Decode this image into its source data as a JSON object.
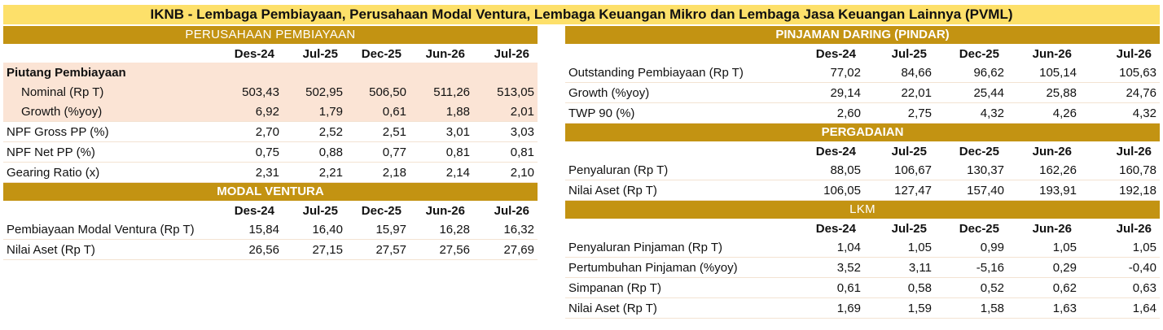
{
  "title": "IKNB - Lembaga Pembiayaan, Perusahaan Modal Ventura, Lembaga Keuangan Mikro dan Lembaga Jasa Keuangan Lainnya (PVML)",
  "periods": [
    "Des-24",
    "Jul-25",
    "Dec-25",
    "Jun-26",
    "Jul-26"
  ],
  "pembiayaan": {
    "header": "PERUSAHAAN PEMBIAYAAN",
    "group_label": "Piutang Pembiayaan",
    "rows": [
      {
        "label": "Nominal (Rp T)",
        "values": [
          "503,43",
          "502,95",
          "506,50",
          "511,26",
          "513,05"
        ]
      },
      {
        "label": "Growth (%yoy)",
        "values": [
          "6,92",
          "1,79",
          "0,61",
          "1,88",
          "2,01"
        ]
      },
      {
        "label": "NPF Gross PP (%)",
        "values": [
          "2,70",
          "2,52",
          "2,51",
          "3,01",
          "3,03"
        ]
      },
      {
        "label": "NPF Net PP (%)",
        "values": [
          "0,75",
          "0,88",
          "0,77",
          "0,81",
          "0,81"
        ]
      },
      {
        "label": "Gearing Ratio (x)",
        "values": [
          "2,31",
          "2,21",
          "2,18",
          "2,14",
          "2,10"
        ]
      }
    ]
  },
  "modal_ventura": {
    "header": "MODAL VENTURA",
    "rows": [
      {
        "label": "Pembiayaan Modal Ventura (Rp T)",
        "values": [
          "15,84",
          "16,40",
          "15,97",
          "16,28",
          "16,32"
        ]
      },
      {
        "label": "Nilai Aset (Rp T)",
        "values": [
          "26,56",
          "27,15",
          "27,57",
          "27,56",
          "27,69"
        ]
      }
    ]
  },
  "pindar": {
    "header": "PINJAMAN DARING (PINDAR)",
    "rows": [
      {
        "label": "Outstanding Pembiayaan (Rp T)",
        "values": [
          "77,02",
          "84,66",
          "96,62",
          "105,14",
          "105,63"
        ]
      },
      {
        "label": "Growth (%yoy)",
        "values": [
          "29,14",
          "22,01",
          "25,44",
          "25,88",
          "24,76"
        ]
      },
      {
        "label": "TWP 90 (%)",
        "values": [
          "2,60",
          "2,75",
          "4,32",
          "4,26",
          "4,32"
        ]
      }
    ]
  },
  "pergadaian": {
    "header": "PERGADAIAN",
    "rows": [
      {
        "label": "Penyaluran (Rp T)",
        "values": [
          "88,05",
          "106,67",
          "130,37",
          "162,26",
          "160,78"
        ]
      },
      {
        "label": "Nilai Aset (Rp T)",
        "values": [
          "106,05",
          "127,47",
          "157,40",
          "193,91",
          "192,18"
        ]
      }
    ]
  },
  "lkm": {
    "header": "LKM",
    "rows": [
      {
        "label": "Penyaluran Pinjaman (Rp T)",
        "values": [
          "1,04",
          "1,05",
          "0,99",
          "1,05",
          "1,05"
        ]
      },
      {
        "label": "Pertumbuhan Pinjaman (%yoy)",
        "values": [
          "3,52",
          "3,11",
          "-5,16",
          "0,29",
          "-0,40"
        ]
      },
      {
        "label": "Simpanan (Rp T)",
        "values": [
          "0,61",
          "0,58",
          "0,52",
          "0,62",
          "0,63"
        ]
      },
      {
        "label": "Nilai Aset (Rp T)",
        "values": [
          "1,69",
          "1,59",
          "1,58",
          "1,63",
          "1,64"
        ]
      }
    ]
  },
  "colors": {
    "title_bg": "#fde06a",
    "band_bg": "#c39312",
    "shade_bg": "#fbe4d5"
  }
}
